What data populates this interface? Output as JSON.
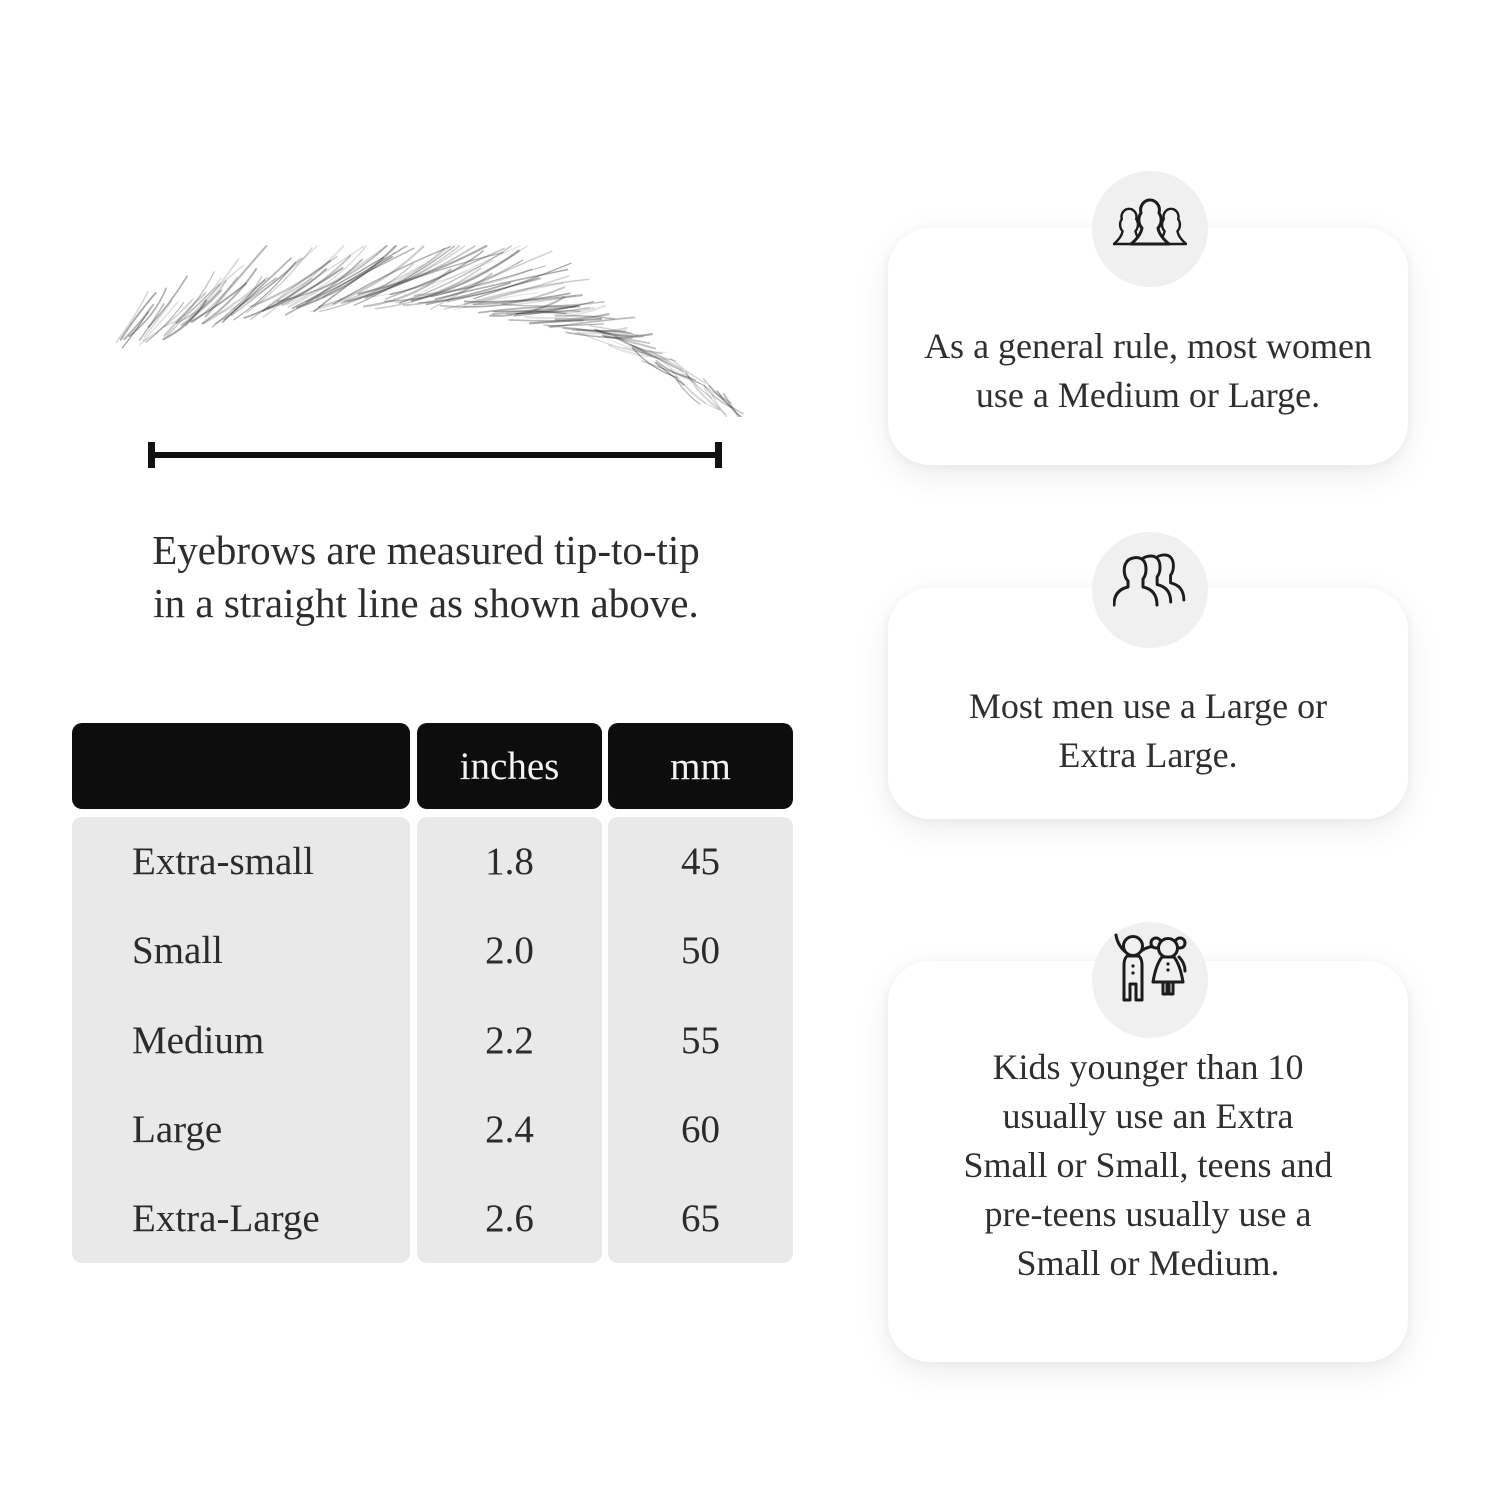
{
  "measure_section": {
    "caption_line1": "Eyebrows are measured tip-to-tip",
    "caption_line2": "in a straight line as shown above."
  },
  "size_table": {
    "col_headers": {
      "size": "",
      "inches": "inches",
      "mm": "mm"
    },
    "rows": [
      {
        "label": "Extra-small",
        "inches": "1.8",
        "mm": "45"
      },
      {
        "label": "Small",
        "inches": "2.0",
        "mm": "50"
      },
      {
        "label": "Medium",
        "inches": "2.2",
        "mm": "55"
      },
      {
        "label": "Large",
        "inches": "2.4",
        "mm": "60"
      },
      {
        "label": "Extra-Large",
        "inches": "2.6",
        "mm": "65"
      }
    ]
  },
  "tips": [
    {
      "icon": "women-group-icon",
      "line1": "As a general rule, most women",
      "line2": "use a Medium or Large."
    },
    {
      "icon": "men-group-icon",
      "line1": "Most men use a Large or",
      "line2": "Extra Large."
    },
    {
      "icon": "kids-icon",
      "line1": "Kids younger than 10",
      "line2": "usually use an Extra",
      "line3": "Small or Small, teens and",
      "line4": "pre-teens usually use a",
      "line5": "Small or Medium."
    }
  ],
  "colors": {
    "page_bg": "#ffffff",
    "table_header_bg": "#0d0d0d",
    "table_header_text": "#f5f5f5",
    "table_body_bg": "#e9e9e9",
    "badge_bg": "#f0f0f0",
    "card_bg": "#ffffff",
    "text": "#2d2d2d",
    "measure_line": "#111111"
  }
}
